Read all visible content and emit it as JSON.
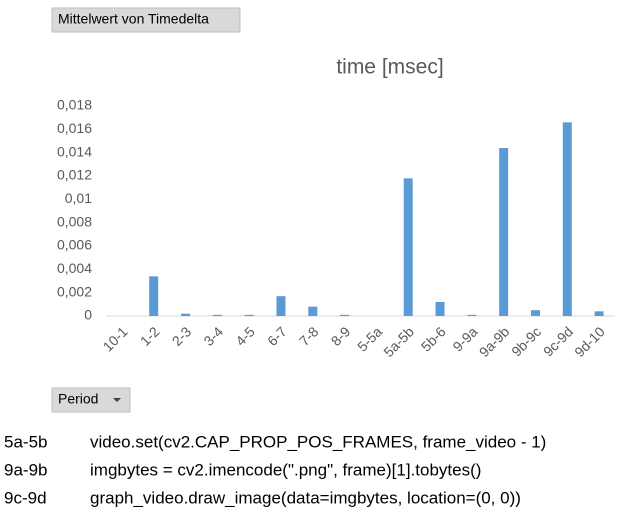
{
  "chart_data": {
    "type": "bar",
    "title": "time [msec]",
    "categories": [
      "10-1",
      "1-2",
      "2-3",
      "3-4",
      "4-5",
      "6-7",
      "7-8",
      "8-9",
      "5-5a",
      "5a-5b",
      "5b-6",
      "9-9a",
      "9a-9b",
      "9b-9c",
      "9c-9d",
      "9d-10"
    ],
    "values": [
      0,
      0.0034,
      0.0002,
      0.0001,
      0.0001,
      0.0017,
      0.0008,
      0.0001,
      0,
      0.0118,
      0.0012,
      0.0001,
      0.0144,
      0.0005,
      0.0166,
      0.0004
    ],
    "color": "#5b9bd5",
    "ylim": [
      0,
      0.018
    ],
    "yticks": [
      0,
      {
        "value": 0.002,
        "label": "0,002"
      },
      {
        "value": 0.004,
        "label": "0,004"
      },
      {
        "value": 0.006,
        "label": "0,006"
      },
      {
        "value": 0.008,
        "label": "0,008"
      },
      {
        "value": 0.01,
        "label": "0,01"
      },
      {
        "value": 0.012,
        "label": "0,012"
      },
      {
        "value": 0.014,
        "label": "0,014"
      },
      {
        "value": 0.016,
        "label": "0,016"
      },
      {
        "value": 0.018,
        "label": "0,018"
      }
    ],
    "grid": false
  },
  "field_buttons": {
    "values": "Mittelwert von Timedelta",
    "axis": "Period"
  },
  "notes": [
    {
      "label": "5a-5b",
      "code": "video.set(cv2.CAP_PROP_POS_FRAMES, frame_video - 1)"
    },
    {
      "label": "9a-9b",
      "code": "imgbytes = cv2.imencode(\".png\", frame)[1].tobytes()"
    },
    {
      "label": "9c-9d",
      "code": "graph_video.draw_image(data=imgbytes, location=(0, 0))"
    }
  ]
}
